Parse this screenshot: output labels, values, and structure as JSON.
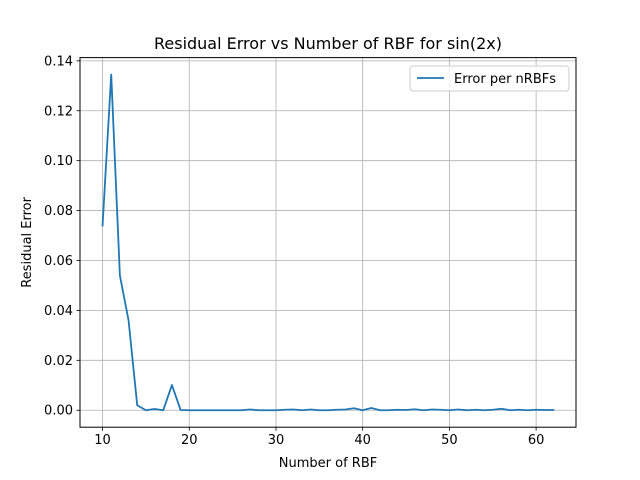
{
  "chart_data": {
    "type": "line",
    "title": "Residual Error vs Number of RBF for sin(2x)",
    "xlabel": "Number of RBF",
    "ylabel": "Residual Error",
    "xlim": [
      7.4,
      64.6
    ],
    "ylim": [
      -0.0068,
      0.1413
    ],
    "xticks": [
      10,
      20,
      30,
      40,
      50,
      60
    ],
    "yticks": [
      0.0,
      0.02,
      0.04,
      0.06,
      0.08,
      0.1,
      0.12,
      0.14
    ],
    "ytick_labels": [
      "0.00",
      "0.02",
      "0.04",
      "0.06",
      "0.08",
      "0.10",
      "0.12",
      "0.14"
    ],
    "grid": true,
    "legend_position": "upper right",
    "series": [
      {
        "name": "Error per nRBFs",
        "color": "#1f77b4",
        "x": [
          10,
          11,
          12,
          13,
          14,
          15,
          16,
          17,
          18,
          19,
          20,
          21,
          22,
          23,
          24,
          25,
          26,
          27,
          28,
          29,
          30,
          31,
          32,
          33,
          34,
          35,
          36,
          37,
          38,
          39,
          40,
          41,
          42,
          43,
          44,
          45,
          46,
          47,
          48,
          49,
          50,
          51,
          52,
          53,
          54,
          55,
          56,
          57,
          58,
          59,
          60,
          61,
          62
        ],
        "y": [
          0.074,
          0.1345,
          0.054,
          0.036,
          0.002,
          0.0,
          0.0005,
          0.0,
          0.0101,
          0.0001,
          0.0,
          0.0,
          0.0,
          0.0,
          0.0,
          0.0,
          0.0,
          0.0003,
          0.0,
          0.0,
          0.0,
          0.0002,
          0.0003,
          0.0,
          0.0003,
          0.0,
          0.0,
          0.0002,
          0.0003,
          0.0008,
          0.0,
          0.0009,
          0.0,
          0.0,
          0.0002,
          0.0001,
          0.0004,
          0.0,
          0.0003,
          0.0002,
          0.0,
          0.0003,
          0.0,
          0.0002,
          0.0,
          0.0002,
          0.0006,
          0.0,
          0.0002,
          0.0,
          0.0002,
          0.0001,
          0.0001
        ]
      }
    ]
  }
}
